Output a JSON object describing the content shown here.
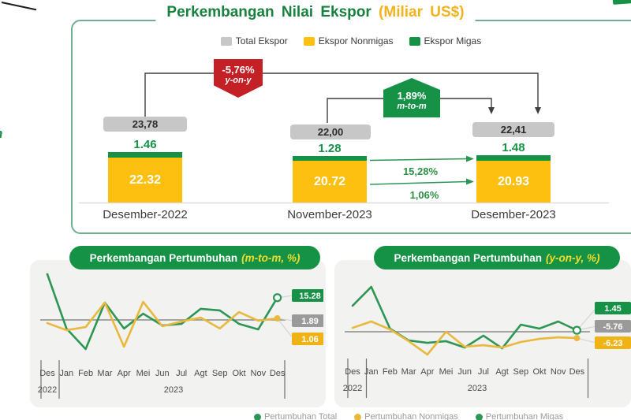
{
  "decor": {
    "left_fragment_top": "n",
    "left_fragment_bottom": "l,"
  },
  "main_panel": {
    "title": "Perkembangan Nilai Ekspor",
    "title_unit": "(Miliar US$)",
    "title_color": "#17813f",
    "unit_color": "#f2b31c",
    "legend": [
      {
        "label": "Total Ekspor",
        "color": "#c7c7c7"
      },
      {
        "label": "Ekspor Nonmigas",
        "color": "#fdc010"
      },
      {
        "label": "Ekspor Migas",
        "color": "#169247"
      }
    ],
    "yoy_badge": {
      "value": "-5,76%",
      "label": "y-on-y",
      "color": "#c42127"
    },
    "mtm_badge": {
      "value": "1,89%",
      "label": "m-to-m",
      "color": "#169247"
    },
    "bars": [
      {
        "period": "Desember-2022",
        "total": "23,78",
        "migas": "1.46",
        "nonmigas": "22.32"
      },
      {
        "period": "November-2023",
        "total": "22,00",
        "migas": "1.28",
        "nonmigas": "20.72"
      },
      {
        "period": "Desember-2023",
        "total": "22,41",
        "migas": "1.48",
        "nonmigas": "20.93"
      }
    ],
    "growth_arrows": [
      {
        "label": "15,28%",
        "meaning": "migas m-to-m"
      },
      {
        "label": "1,06%",
        "meaning": "nonmigas m-to-m"
      }
    ],
    "colors": {
      "nonmigas": "#fdc010",
      "migas": "#169247"
    }
  },
  "charts": [
    {
      "header": "Perkembangan Pertumbuhan",
      "header_accent": "(m-to-m, %)",
      "pill_color": "#169247"
    },
    {
      "header": "Perkembangan Pertumbuhan",
      "header_accent": "(y-on-y, %)",
      "pill_color": "#169247"
    }
  ],
  "chart_data": [
    {
      "type": "line",
      "title": "Perkembangan Pertumbuhan (m-to-m, %)",
      "months": [
        "Des",
        "Jan",
        "Feb",
        "Mar",
        "Apr",
        "Mei",
        "Jun",
        "Jul",
        "Agt",
        "Sep",
        "Okt",
        "Nov",
        "Des"
      ],
      "years": [
        "2022",
        "2023"
      ],
      "series": [
        {
          "name": "Ekspor Migas",
          "color": "#2d9655",
          "values": [
            31.4,
            -5.9,
            -20.0,
            11.9,
            -5.9,
            4.3,
            -3.8,
            -2.7,
            7.6,
            6.5,
            -2.7,
            -6.5,
            15.28
          ]
        },
        {
          "name": "Ekspor Nonmigas",
          "color": "#e9b83d",
          "values": [
            -2.2,
            -7.0,
            -4.9,
            11.9,
            -18.4,
            12.4,
            -4.3,
            -1.1,
            1.6,
            -5.9,
            5.4,
            -0.5,
            1.06
          ]
        }
      ],
      "end_labels": [
        {
          "text": "15.28",
          "bg": "#169247"
        },
        {
          "text": "1.89",
          "bg": "#9a9a9a"
        },
        {
          "text": "1.06",
          "bg": "#f0b316"
        }
      ],
      "ylim": [
        -25,
        35
      ],
      "grid": false,
      "legend_position": "right"
    },
    {
      "type": "line",
      "title": "Perkembangan Pertumbuhan (y-on-y, %)",
      "months": [
        "Des",
        "Jan",
        "Feb",
        "Mar",
        "Apr",
        "Mei",
        "Jun",
        "Jul",
        "Agt",
        "Sep",
        "Okt",
        "Nov",
        "Des"
      ],
      "years": [
        "2022",
        "2023"
      ],
      "series": [
        {
          "name": "Ekspor Migas",
          "color": "#2d9655",
          "values": [
            25.4,
            43.8,
            3.1,
            -8.5,
            -10.8,
            -9.2,
            -15.4,
            -3.8,
            -16.2,
            6.9,
            3.1,
            10.0,
            1.45
          ]
        },
        {
          "name": "Ekspor Nonmigas",
          "color": "#e9b83d",
          "values": [
            3.8,
            10.0,
            2.3,
            -9.2,
            -22.3,
            0.0,
            -14.6,
            -13.1,
            -15.4,
            -10.0,
            -6.9,
            -5.4,
            -6.23
          ]
        }
      ],
      "end_labels": [
        {
          "text": "1.45",
          "bg": "#169247"
        },
        {
          "text": "-5.76",
          "bg": "#9a9a9a"
        },
        {
          "text": "-6.23",
          "bg": "#f0b316"
        }
      ],
      "ylim": [
        -30,
        50
      ],
      "grid": false,
      "legend_position": "right"
    }
  ],
  "footer_legend": {
    "items": [
      {
        "label": "Pertumbuhan Total",
        "color": "#2d9655"
      },
      {
        "label": "Pertumbuhan Nonmigas",
        "color": "#e9b83d"
      },
      {
        "label": "Pertumbuhan Migas",
        "color": "#2d9655"
      }
    ]
  }
}
